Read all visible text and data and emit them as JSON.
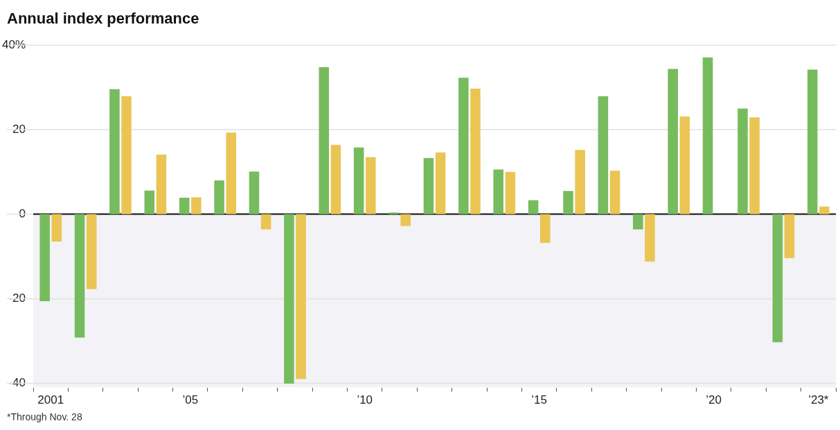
{
  "chart_data": {
    "type": "bar",
    "title": "Annual index performance",
    "categories": [
      "2001",
      null,
      null,
      null,
      "’05",
      null,
      null,
      null,
      null,
      "’10",
      null,
      null,
      null,
      null,
      "’15",
      null,
      null,
      null,
      null,
      "’20",
      null,
      null,
      "’23*"
    ],
    "series": [
      {
        "color": "#77bb5f",
        "values": [
          -20.6,
          -29.2,
          29.6,
          5.6,
          3.9,
          8.0,
          10.1,
          -40.1,
          34.8,
          15.8,
          0.4,
          13.3,
          32.3,
          10.6,
          3.3,
          5.5,
          27.9,
          -3.6,
          34.4,
          37.1,
          25.0,
          -30.3,
          34.2
        ]
      },
      {
        "color": "#eac554",
        "values": [
          -6.5,
          -17.7,
          27.9,
          14.1,
          4.0,
          19.3,
          -3.6,
          -39.0,
          16.4,
          13.5,
          -2.8,
          14.6,
          29.7,
          10.0,
          -6.8,
          15.2,
          10.3,
          -11.2,
          23.1,
          null,
          22.9,
          -10.4,
          1.8
        ]
      }
    ],
    "ylim": [
      -41,
      40
    ],
    "yticks": [
      {
        "value": 40,
        "label": "40%"
      },
      20,
      0,
      -20,
      -40
    ],
    "grid": "y",
    "legend": false,
    "bands": [
      {
        "axis": "y",
        "from": -41,
        "to": 0,
        "color": "#f3f3f7"
      }
    ],
    "ref_lines": [
      {
        "axis": "y",
        "value": 0,
        "color": "#111111"
      }
    ],
    "annotations": [
      "*Through Nov. 28"
    ]
  }
}
